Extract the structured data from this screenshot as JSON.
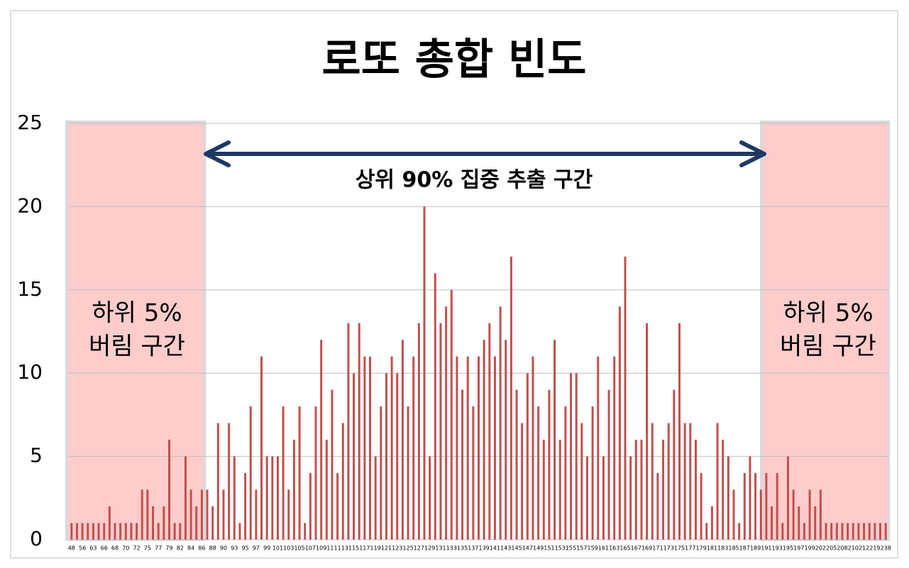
{
  "chart_data": {
    "type": "bar",
    "title": "로또 총합 빈도",
    "annotation": "상위 90% 집중 추출 구간",
    "left_zone_label": [
      "하위 5%",
      "버림 구간"
    ],
    "right_zone_label": [
      "하위 5%",
      "버림 구간"
    ],
    "color": "#c0504d",
    "ylim": [
      0,
      25
    ],
    "yticks": [
      0,
      5,
      10,
      15,
      20,
      25
    ],
    "grid": true,
    "categories": [
      "48",
      null,
      "56",
      null,
      "63",
      null,
      "66",
      null,
      "68",
      null,
      "70",
      null,
      "72",
      null,
      "75",
      null,
      "77",
      null,
      "79",
      null,
      "82",
      null,
      "84",
      null,
      "86",
      null,
      "88",
      null,
      "90",
      null,
      "93",
      null,
      "95",
      null,
      "97",
      null,
      "99",
      null,
      "101",
      null,
      "103",
      null,
      "105",
      null,
      "107",
      null,
      "109",
      null,
      "111",
      null,
      "113",
      null,
      "115",
      null,
      "117",
      null,
      "119",
      null,
      "121",
      null,
      "123",
      null,
      "125",
      null,
      "127",
      null,
      "129",
      null,
      "131",
      null,
      "133",
      null,
      "135",
      null,
      "137",
      null,
      "139",
      null,
      "141",
      null,
      "143",
      null,
      "145",
      null,
      "147",
      null,
      "149",
      null,
      "151",
      null,
      "153",
      null,
      "155",
      null,
      "157",
      null,
      "159",
      null,
      "161",
      null,
      "163",
      null,
      "165",
      null,
      "167",
      null,
      "169",
      null,
      "171",
      null,
      "173",
      null,
      "175",
      null,
      "177",
      null,
      "179",
      null,
      "181",
      null,
      "183",
      null,
      "185",
      null,
      "187",
      null,
      "189",
      null,
      "191",
      null,
      "193",
      null,
      "195",
      null,
      "197",
      null,
      "199",
      null,
      "202",
      null,
      "205",
      null,
      "208",
      null,
      "210",
      null,
      "212",
      null,
      "219",
      null,
      "238"
    ],
    "values": [
      1,
      1,
      1,
      1,
      1,
      1,
      1,
      2,
      1,
      1,
      1,
      1,
      1,
      3,
      3,
      2,
      1,
      2,
      6,
      1,
      1,
      5,
      3,
      2,
      3,
      3,
      2,
      7,
      3,
      7,
      5,
      1,
      4,
      8,
      3,
      11,
      5,
      5,
      5,
      8,
      3,
      6,
      8,
      1,
      4,
      8,
      12,
      6,
      9,
      4,
      7,
      13,
      10,
      13,
      11,
      11,
      5,
      8,
      10,
      11,
      10,
      12,
      8,
      11,
      13,
      20,
      5,
      16,
      13,
      14,
      15,
      11,
      9,
      11,
      8,
      11,
      12,
      13,
      11,
      14,
      12,
      17,
      9,
      7,
      10,
      11,
      8,
      6,
      9,
      12,
      6,
      8,
      10,
      10,
      7,
      5,
      8,
      11,
      5,
      9,
      11,
      14,
      17,
      5,
      6,
      6,
      13,
      7,
      4,
      6,
      7,
      9,
      13,
      7,
      7,
      6,
      4,
      1,
      2,
      7,
      6,
      5,
      3,
      1,
      4,
      5,
      4,
      3,
      4,
      2,
      4,
      1,
      5,
      3,
      2,
      1,
      3,
      2,
      3,
      1,
      1,
      1,
      1,
      1,
      1,
      1,
      1,
      1,
      1,
      1,
      1
    ]
  }
}
